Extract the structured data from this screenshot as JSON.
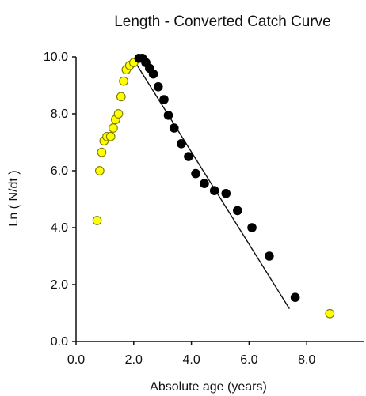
{
  "chart_data": {
    "type": "scatter",
    "title": "Length - Converted Catch Curve",
    "xlabel": "Absolute age (years)",
    "ylabel": "Ln ( N/dt )",
    "xlim": [
      0.0,
      10.0
    ],
    "ylim": [
      0.0,
      10.0
    ],
    "x_ticks": [
      0.0,
      2.0,
      4.0,
      6.0,
      8.0
    ],
    "x_tick_labels": [
      "0.0",
      "2.0",
      "4.0",
      "6.0",
      "8.0"
    ],
    "y_ticks": [
      0.0,
      2.0,
      4.0,
      6.0,
      8.0,
      10.0
    ],
    "y_tick_labels": [
      "0.0",
      "2.0",
      "4.0",
      "6.0",
      "8.0",
      "10.0"
    ],
    "grid": false,
    "colors": {
      "excluded_fill": "#ffff00",
      "excluded_stroke": "#7a7a00",
      "included_fill": "#000000",
      "line": "#111111"
    },
    "series": [
      {
        "points": [
          {
            "x": 0.73,
            "y": 4.25
          },
          {
            "x": 0.82,
            "y": 6.0
          },
          {
            "x": 0.89,
            "y": 6.65
          },
          {
            "x": 0.97,
            "y": 7.05
          },
          {
            "x": 1.07,
            "y": 7.2
          },
          {
            "x": 1.2,
            "y": 7.2
          },
          {
            "x": 1.29,
            "y": 7.5
          },
          {
            "x": 1.37,
            "y": 7.8
          },
          {
            "x": 1.47,
            "y": 8.0
          },
          {
            "x": 1.56,
            "y": 8.6
          },
          {
            "x": 1.65,
            "y": 9.15
          },
          {
            "x": 1.74,
            "y": 9.55
          },
          {
            "x": 1.86,
            "y": 9.7
          },
          {
            "x": 2.0,
            "y": 9.8
          },
          {
            "x": 8.8,
            "y": 0.98
          }
        ]
      },
      {
        "points": [
          {
            "x": 2.18,
            "y": 9.95
          },
          {
            "x": 2.3,
            "y": 9.95
          },
          {
            "x": 2.42,
            "y": 9.8
          },
          {
            "x": 2.55,
            "y": 9.6
          },
          {
            "x": 2.68,
            "y": 9.4
          },
          {
            "x": 2.85,
            "y": 8.95
          },
          {
            "x": 3.05,
            "y": 8.5
          },
          {
            "x": 3.2,
            "y": 7.95
          },
          {
            "x": 3.4,
            "y": 7.5
          },
          {
            "x": 3.65,
            "y": 6.95
          },
          {
            "x": 3.9,
            "y": 6.5
          },
          {
            "x": 4.15,
            "y": 5.9
          },
          {
            "x": 4.45,
            "y": 5.55
          },
          {
            "x": 4.8,
            "y": 5.3
          },
          {
            "x": 5.2,
            "y": 5.2
          },
          {
            "x": 5.6,
            "y": 4.6
          },
          {
            "x": 6.1,
            "y": 4.0
          },
          {
            "x": 6.7,
            "y": 3.0
          },
          {
            "x": 7.6,
            "y": 1.55
          }
        ]
      }
    ],
    "regression_line": {
      "x": [
        2.0,
        7.4
      ],
      "y": [
        9.9,
        1.15
      ]
    }
  }
}
